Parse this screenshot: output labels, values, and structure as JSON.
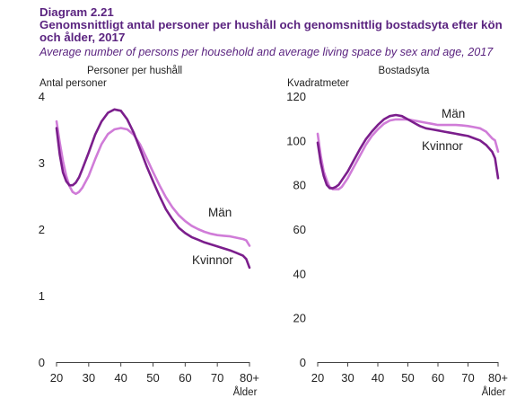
{
  "header": {
    "diagram_number": "Diagram 2.21",
    "title_sv": "Genomsnittligt antal personer per hushåll och genomsnittlig bostadsyta efter kön och ålder, 2017",
    "title_en": "Average number of persons per household and average living space by sex and age, 2017"
  },
  "colors": {
    "man": "#d07cd8",
    "kvinna": "#7b1e8c",
    "title": "#5b2480"
  },
  "chart_data": [
    {
      "type": "line",
      "title": "Personer per hushåll",
      "ylabel": "Antal personer",
      "xlabel": "Ålder",
      "xlim": [
        20,
        80
      ],
      "ylim": [
        0,
        4
      ],
      "xticks": [
        20,
        30,
        40,
        50,
        60,
        70,
        80
      ],
      "xtick_labels": [
        "20",
        "30",
        "40",
        "50",
        "60",
        "70",
        "80+"
      ],
      "yticks": [
        0,
        1,
        2,
        3,
        4
      ],
      "ytick_labels": [
        "0",
        "1",
        "2",
        "3",
        "4"
      ],
      "grid": false,
      "legend": "inline labels",
      "series": [
        {
          "name": "Män",
          "color_key": "man",
          "x": [
            20,
            21,
            22,
            23,
            24,
            25,
            26,
            27,
            28,
            30,
            32,
            34,
            36,
            38,
            40,
            42,
            44,
            46,
            48,
            50,
            52,
            54,
            56,
            58,
            60,
            62,
            64,
            66,
            68,
            70,
            72,
            74,
            76,
            78,
            79,
            80
          ],
          "y": [
            3.62,
            3.3,
            3.02,
            2.8,
            2.65,
            2.56,
            2.53,
            2.56,
            2.62,
            2.8,
            3.05,
            3.28,
            3.43,
            3.5,
            3.52,
            3.5,
            3.42,
            3.27,
            3.07,
            2.86,
            2.66,
            2.48,
            2.33,
            2.21,
            2.12,
            2.05,
            2.0,
            1.96,
            1.93,
            1.91,
            1.9,
            1.89,
            1.87,
            1.85,
            1.83,
            1.75
          ]
        },
        {
          "name": "Kvinnor",
          "color_key": "kvinna",
          "x": [
            20,
            21,
            22,
            23,
            24,
            25,
            26,
            27,
            28,
            30,
            32,
            34,
            36,
            38,
            40,
            42,
            44,
            46,
            48,
            50,
            52,
            54,
            56,
            58,
            60,
            62,
            64,
            66,
            68,
            70,
            72,
            74,
            76,
            78,
            79,
            80
          ],
          "y": [
            3.52,
            3.12,
            2.85,
            2.72,
            2.66,
            2.66,
            2.7,
            2.78,
            2.9,
            3.15,
            3.42,
            3.62,
            3.75,
            3.8,
            3.78,
            3.65,
            3.45,
            3.2,
            2.95,
            2.72,
            2.5,
            2.3,
            2.15,
            2.02,
            1.94,
            1.88,
            1.84,
            1.8,
            1.77,
            1.74,
            1.71,
            1.68,
            1.64,
            1.6,
            1.55,
            1.42
          ]
        }
      ]
    },
    {
      "type": "line",
      "title": "Bostadsyta",
      "ylabel": "Kvadratmeter",
      "xlabel": "Ålder",
      "xlim": [
        20,
        80
      ],
      "ylim": [
        0,
        120
      ],
      "xticks": [
        20,
        30,
        40,
        50,
        60,
        70,
        80
      ],
      "xtick_labels": [
        "20",
        "30",
        "40",
        "50",
        "60",
        "70",
        "80+"
      ],
      "yticks": [
        0,
        20,
        40,
        60,
        80,
        100,
        120
      ],
      "ytick_labels": [
        "0",
        "20",
        "40",
        "60",
        "80",
        "100",
        "120"
      ],
      "grid": false,
      "legend": "inline labels",
      "series": [
        {
          "name": "Män",
          "color_key": "man",
          "x": [
            20,
            21,
            22,
            23,
            24,
            25,
            26,
            27,
            28,
            30,
            32,
            34,
            36,
            38,
            40,
            42,
            44,
            46,
            48,
            50,
            52,
            54,
            56,
            58,
            60,
            62,
            64,
            66,
            68,
            70,
            72,
            74,
            76,
            78,
            79,
            80
          ],
          "y": [
            103,
            93,
            86,
            82,
            79,
            78,
            78,
            78,
            79,
            83,
            88,
            93,
            98,
            102,
            105,
            107.5,
            109,
            109.5,
            109.5,
            109.5,
            109,
            108.5,
            108,
            107.5,
            107,
            107,
            107,
            107,
            106.8,
            106.5,
            106,
            105.5,
            104,
            101,
            100,
            95
          ]
        },
        {
          "name": "Kvinnor",
          "color_key": "kvinna",
          "x": [
            20,
            21,
            22,
            23,
            24,
            25,
            26,
            27,
            28,
            30,
            32,
            34,
            36,
            38,
            40,
            42,
            44,
            46,
            48,
            50,
            52,
            54,
            56,
            58,
            60,
            62,
            64,
            66,
            68,
            70,
            72,
            74,
            76,
            78,
            79,
            80
          ],
          "y": [
            99,
            90,
            84,
            80,
            78.5,
            78.5,
            79,
            80,
            82,
            86,
            91,
            96,
            100.5,
            104,
            107,
            109.5,
            111,
            111.5,
            111,
            109.5,
            108,
            106.5,
            105.5,
            105,
            104.5,
            104,
            103.5,
            103,
            102.5,
            102,
            101,
            100,
            98,
            95,
            92,
            83
          ]
        }
      ]
    }
  ]
}
